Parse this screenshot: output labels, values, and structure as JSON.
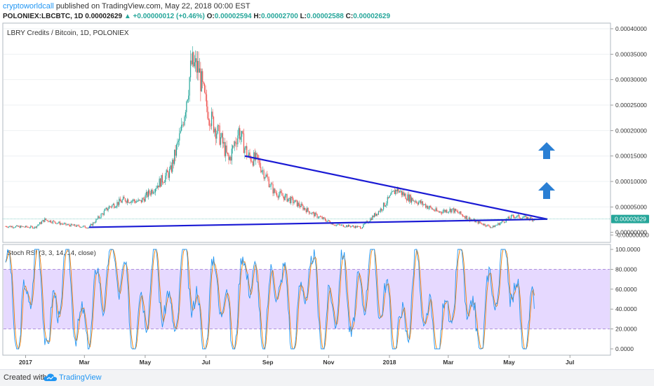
{
  "header": {
    "author": "cryptoworldcall",
    "published": "published on TradingView.com, May 22, 2018 00:00 EST",
    "symbol": "POLONIEX:LBCBTC, 1D",
    "last": "0.00002629",
    "change": "+0.00000012 (+0.46%)",
    "o_label": "O:",
    "o_value": "0.00002594",
    "h_label": "H:",
    "h_value": "0.00002700",
    "l_label": "L:",
    "l_value": "0.00002588",
    "c_label": "C:",
    "c_value": "0.00002629"
  },
  "footer": {
    "created": "Created with",
    "brand": "TradingView"
  },
  "colors": {
    "up": "#26a69a",
    "down": "#ef5350",
    "trendline": "#1a1ad4",
    "arrow": "#2a7fd4",
    "rsi_k": "#2196f3",
    "rsi_d": "#f57c00",
    "rsi_band": "#e6d9ff",
    "price_badge": "#26a69a"
  },
  "chart_data": [
    {
      "type": "candlestick",
      "title": "LBRY Credits / Bitcoin, 1D, POLONIEX",
      "ylim": [
        -1e-05,
        0.0004
      ],
      "y_ticks": [
        "0.00040000",
        "0.00035000",
        "0.00030000",
        "0.00025000",
        "0.00020000",
        "0.00015000",
        "0.00010000",
        "0.00005000",
        "0.00000000",
        "-0.00000000"
      ],
      "current_price": "0.00002629",
      "x_ticks": [
        "2017",
        "Mar",
        "May",
        "Jul",
        "Sep",
        "Nov",
        "2018",
        "Mar",
        "May",
        "Jul"
      ],
      "close_profile": {
        "x": [
          "2016-12-12",
          "2017-01-10",
          "2017-01-20",
          "2017-02-10",
          "2017-03-05",
          "2017-03-25",
          "2017-04-10",
          "2017-04-25",
          "2017-05-10",
          "2017-05-25",
          "2017-06-05",
          "2017-06-15",
          "2017-06-22",
          "2017-06-28",
          "2017-07-05",
          "2017-07-15",
          "2017-07-22",
          "2017-08-01",
          "2017-08-10",
          "2017-08-20",
          "2017-09-05",
          "2017-09-25",
          "2017-10-15",
          "2017-11-05",
          "2017-12-01",
          "2017-12-20",
          "2018-01-05",
          "2018-01-15",
          "2018-02-01",
          "2018-02-15",
          "2018-03-01",
          "2018-03-20",
          "2018-04-10",
          "2018-05-01",
          "2018-05-22"
        ],
        "close": [
          1.2e-05,
          1e-05,
          2.5e-05,
          1.5e-05,
          1e-05,
          5e-05,
          6.5e-05,
          6e-05,
          9e-05,
          0.00012,
          0.0002,
          0.00033,
          0.00032,
          0.00026,
          0.00022,
          0.00018,
          0.00014,
          0.0002,
          0.00015,
          0.00014,
          8e-05,
          6e-05,
          3.5e-05,
          1.5e-05,
          1e-05,
          4.5e-05,
          8.5e-05,
          7e-05,
          5.5e-05,
          4e-05,
          4.5e-05,
          2.5e-05,
          1e-05,
          3.2e-05,
          2.6e-05
        ]
      },
      "trendlines": [
        {
          "from": [
            "2017-08-07",
            0.00015
          ],
          "to": [
            "2018-06-04",
            2.6e-05
          ]
        },
        {
          "from": [
            "2017-03-05",
            1e-05
          ],
          "to": [
            "2018-06-04",
            2.6e-05
          ]
        }
      ],
      "annotations": [
        "up-arrow",
        "up-arrow"
      ]
    },
    {
      "type": "line",
      "title": "Stoch RSI (3, 3, 14, 14, close)",
      "ylim": [
        0,
        100
      ],
      "bands": [
        20,
        80
      ],
      "y_ticks": [
        "100.0000",
        "80.0000",
        "60.0000",
        "40.0000",
        "20.0000",
        "0.0000"
      ],
      "series": [
        {
          "name": "K",
          "x": [
            "2016-12-12",
            "2016-12-25",
            "2017-01-10",
            "2017-01-25",
            "2017-02-10",
            "2017-02-25",
            "2017-03-15",
            "2017-04-01",
            "2017-04-20",
            "2017-05-10",
            "2017-05-25",
            "2017-06-10",
            "2017-06-25",
            "2017-07-10",
            "2017-07-25",
            "2017-08-10",
            "2017-08-25",
            "2017-09-10",
            "2017-09-25",
            "2017-10-10",
            "2017-10-25",
            "2017-11-10",
            "2017-11-25",
            "2017-12-10",
            "2017-12-25",
            "2018-01-10",
            "2018-01-25",
            "2018-02-10",
            "2018-02-25",
            "2018-03-10",
            "2018-03-25",
            "2018-04-10",
            "2018-04-25",
            "2018-05-10",
            "2018-05-22"
          ],
          "values": [
            90,
            5,
            95,
            10,
            92,
            8,
            60,
            95,
            10,
            88,
            20,
            95,
            5,
            80,
            10,
            96,
            15,
            85,
            5,
            90,
            10,
            75,
            30,
            95,
            40,
            10,
            80,
            5,
            30,
            95,
            5,
            60,
            98,
            10,
            30
          ]
        }
      ]
    }
  ]
}
